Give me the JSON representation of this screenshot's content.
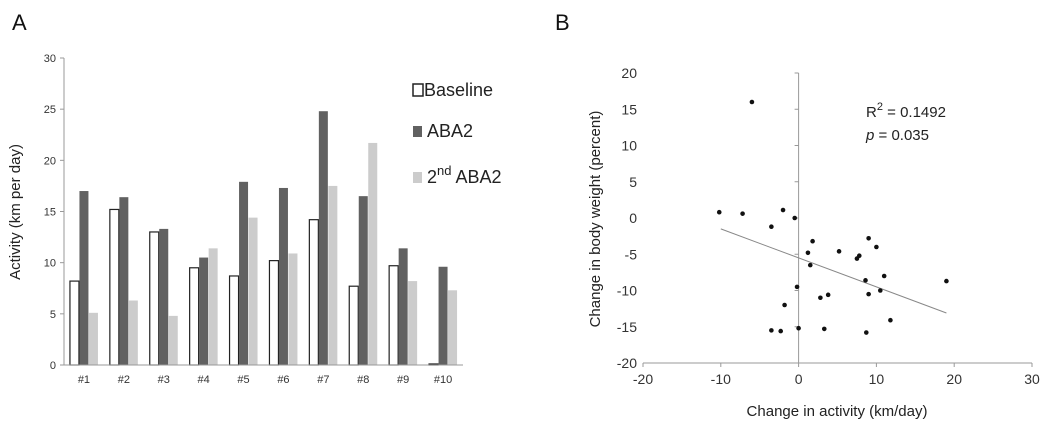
{
  "panels": {
    "a_letter": "A",
    "b_letter": "B"
  },
  "chart_data": [
    {
      "type": "bar",
      "ylabel": "Activity (km per day)",
      "ylim": [
        0,
        30
      ],
      "yticks": [
        0,
        5,
        10,
        15,
        20,
        25,
        30
      ],
      "categories": [
        "#1",
        "#2",
        "#3",
        "#4",
        "#5",
        "#6",
        "#7",
        "#8",
        "#9",
        "#10"
      ],
      "series": [
        {
          "name": "Baseline",
          "color": "#ffffff",
          "stroke": "#222222",
          "values": [
            8.2,
            15.2,
            13.0,
            9.5,
            8.7,
            10.2,
            14.2,
            7.7,
            9.7,
            0.1
          ]
        },
        {
          "name": "ABA2",
          "color": "#616161",
          "stroke": "#616161",
          "values": [
            17.0,
            16.4,
            13.3,
            10.5,
            17.9,
            17.3,
            24.8,
            16.5,
            11.4,
            9.6
          ]
        },
        {
          "name": "2nd ABA2",
          "name_base": "2",
          "name_sup": "nd",
          "name_rest": " ABA2",
          "color": "#cccccc",
          "stroke": "#cccccc",
          "values": [
            5.1,
            6.3,
            4.8,
            11.4,
            14.4,
            10.9,
            17.5,
            21.7,
            8.2,
            7.3
          ]
        }
      ],
      "legend": "top-right"
    },
    {
      "type": "scatter",
      "xlabel": "Change in activity (km/day)",
      "ylabel": "Change in body weight (percent)",
      "xlim": [
        -20,
        30
      ],
      "ylim": [
        -20,
        20
      ],
      "xticks": [
        -20,
        -10,
        0,
        10,
        20,
        30
      ],
      "yticks": [
        -20,
        -15,
        -10,
        -5,
        0,
        5,
        10,
        15,
        20
      ],
      "annotation": {
        "r2_prefix": "R",
        "r2_sup": "2",
        "r2_value": " = 0.1492",
        "p_symbol": "p",
        "p_value": " = 0.035"
      },
      "points": [
        [
          -10.2,
          0.8
        ],
        [
          -7.2,
          0.6
        ],
        [
          -6.0,
          16.0
        ],
        [
          -3.5,
          -1.2
        ],
        [
          -2.0,
          1.1
        ],
        [
          -0.5,
          0.0
        ],
        [
          1.2,
          -4.8
        ],
        [
          1.8,
          -3.2
        ],
        [
          1.5,
          -6.5
        ],
        [
          5.2,
          -4.6
        ],
        [
          7.5,
          -5.6
        ],
        [
          7.8,
          -5.2
        ],
        [
          9.0,
          -2.8
        ],
        [
          10.0,
          -4.0
        ],
        [
          11.0,
          -8.0
        ],
        [
          19.0,
          -8.7
        ],
        [
          8.6,
          -8.6
        ],
        [
          9.0,
          -10.5
        ],
        [
          10.5,
          -10.0
        ],
        [
          -0.2,
          -9.5
        ],
        [
          -1.8,
          -12.0
        ],
        [
          2.8,
          -11.0
        ],
        [
          3.8,
          -10.6
        ],
        [
          11.8,
          -14.1
        ],
        [
          -3.5,
          -15.5
        ],
        [
          -2.3,
          -15.6
        ],
        [
          0.0,
          -15.2
        ],
        [
          3.3,
          -15.3
        ],
        [
          8.7,
          -15.8
        ]
      ],
      "trendline": {
        "x": [
          -10,
          19
        ],
        "y": [
          -1.5,
          -13.1
        ]
      },
      "grid": false
    }
  ]
}
